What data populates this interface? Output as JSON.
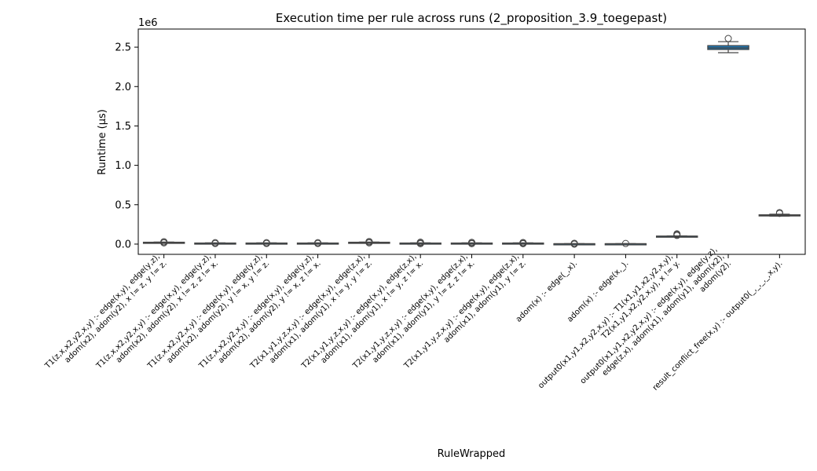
{
  "chart_data": {
    "type": "box",
    "title": "Execution time per rule across runs (2_proposition_3.9_toegepast)",
    "xlabel": "RuleWrapped",
    "ylabel": "Runtime (µs)",
    "y_offset_label": "1e6",
    "ylim": [
      -130000,
      2730000
    ],
    "yticks": [
      {
        "value": 0,
        "label": "0.0"
      },
      {
        "value": 500000,
        "label": "0.5"
      },
      {
        "value": 1000000,
        "label": "1.0"
      },
      {
        "value": 1500000,
        "label": "1.5"
      },
      {
        "value": 2000000,
        "label": "2.0"
      },
      {
        "value": 2500000,
        "label": "2.5"
      }
    ],
    "box_color": "#1f77b4",
    "grid": false,
    "boxes": [
      {
        "label": [
          "T1(z,x,x2,y2,x,y) :-    edge(x,y),    edge(y,z),",
          "adom(x2),   adom(y2),    x != z,    y != z."
        ],
        "min": 18000,
        "q1": 20000,
        "median": 22000,
        "q3": 24000,
        "max": 26000,
        "outliers": [
          16000,
          28000,
          30000
        ]
      },
      {
        "label": [
          "T1(z,x,x2,y2,x,y) :-    edge(x,y),    edge(y,z),",
          "adom(x2),   adom(y2),    x != z,    z != x."
        ],
        "min": 10000,
        "q1": 12000,
        "median": 13000,
        "q3": 14000,
        "max": 16000,
        "outliers": [
          8000,
          18000
        ]
      },
      {
        "label": [
          "T1(z,x,x2,y2,x,y) :-    edge(x,y),    edge(y,z),",
          "adom(x2),   adom(y2),    y != x,    y != z."
        ],
        "min": 10000,
        "q1": 12000,
        "median": 13000,
        "q3": 14000,
        "max": 16000,
        "outliers": [
          8000,
          18000
        ]
      },
      {
        "label": [
          "T1(z,x,x2,y2,x,y) :-    edge(x,y),    edge(y,z),",
          "adom(x2),   adom(y2),    y != x,    z != x."
        ],
        "min": 10000,
        "q1": 12000,
        "median": 13000,
        "q3": 14000,
        "max": 16000,
        "outliers": [
          8000,
          18000
        ]
      },
      {
        "label": [
          "T2(x1,y1,y,z,x,y) :-    edge(x,y),    edge(z,x),",
          "adom(x1),   adom(y1),    x != y,    y != z."
        ],
        "min": 18000,
        "q1": 20000,
        "median": 22000,
        "q3": 24000,
        "max": 26000,
        "outliers": [
          16000,
          28000,
          30000,
          32000
        ]
      },
      {
        "label": [
          "T2(x1,y1,y,z,x,y) :-    edge(x,y),    edge(z,x),",
          "adom(x1),   adom(y1),    x != y,    z != x."
        ],
        "min": 10000,
        "q1": 12000,
        "median": 13000,
        "q3": 14000,
        "max": 16000,
        "outliers": [
          6000,
          8000,
          20000,
          24000
        ]
      },
      {
        "label": [
          "T2(x1,y1,y,z,x,y) :-    edge(x,y),    edge(z,x),",
          "adom(x1),   adom(y1),    y != z,    z != x."
        ],
        "min": 10000,
        "q1": 12000,
        "median": 13000,
        "q3": 14000,
        "max": 16000,
        "outliers": [
          6000,
          8000,
          20000,
          22000
        ]
      },
      {
        "label": [
          "T2(x1,y1,y,z,x,y) :-    edge(x,y),    edge(z,x),",
          "adom(x1),   adom(y1),    y != z."
        ],
        "min": 10000,
        "q1": 12000,
        "median": 13000,
        "q3": 14000,
        "max": 16000,
        "outliers": [
          6000,
          8000,
          18000,
          20000
        ]
      },
      {
        "label": [
          "adom(x) :-    edge(_,x)."
        ],
        "min": 2000,
        "q1": 3000,
        "median": 4000,
        "q3": 5000,
        "max": 6000,
        "outliers": [
          0,
          8000,
          10000
        ]
      },
      {
        "label": [
          "adom(x) :-    edge(x,_)."
        ],
        "min": 2000,
        "q1": 3000,
        "median": 4000,
        "q3": 5000,
        "max": 6000,
        "outliers": [
          8000
        ]
      },
      {
        "label": [
          "output0(x1,y1,x2,y2,x,y) :-    T1(x1,y1,x2,y2,x,y),",
          "T2(x1,y1,x2,y2,x,y),    x != y."
        ],
        "min": 92000,
        "q1": 95000,
        "median": 100000,
        "q3": 102000,
        "max": 105000,
        "outliers": [
          110000,
          120000,
          130000
        ]
      },
      {
        "label": [
          "output0(x1,y1,x2,y2,x,y) :-    edge(x,y),    edge(y,z),",
          "edge(z,x),    adom(x1),    adom(y1),    adom(x2),",
          "adom(y2)."
        ],
        "min": 2430000,
        "q1": 2470000,
        "median": 2490000,
        "q3": 2520000,
        "max": 2570000,
        "outliers": [
          2610000
        ]
      },
      {
        "label": [
          "result_conflict_free(x,y) :-    output0(_,_,_,_,x,y)."
        ],
        "min": 355000,
        "q1": 360000,
        "median": 365000,
        "q3": 372000,
        "max": 380000,
        "outliers": [
          390000,
          400000
        ]
      }
    ]
  }
}
